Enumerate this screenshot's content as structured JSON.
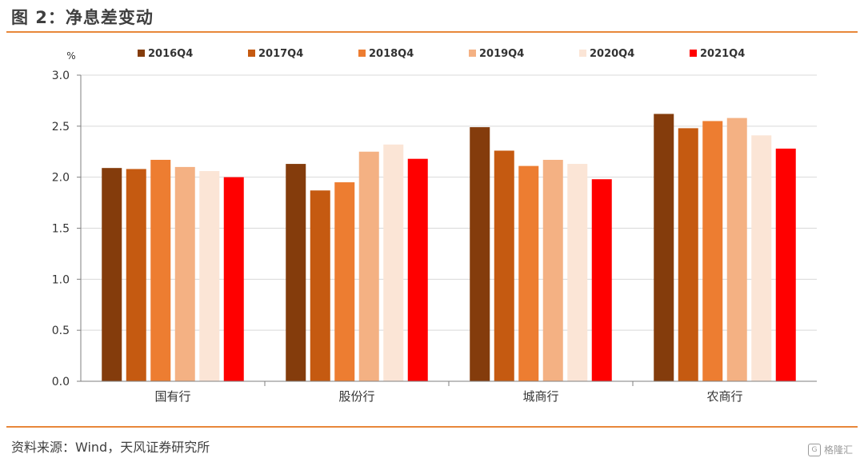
{
  "figure": {
    "title": "图 2：净息差变动",
    "source": "资料来源：Wind，天风证券研究所",
    "watermark": "格隆汇",
    "watermark_icon": "G"
  },
  "chart_data": {
    "type": "bar",
    "title": "",
    "xlabel": "",
    "ylabel": "%",
    "ylim": [
      0,
      3.0
    ],
    "yticks": [
      "0.0",
      "0.5",
      "1.0",
      "1.5",
      "2.0",
      "2.5",
      "3.0"
    ],
    "grid": true,
    "legend_position": "top",
    "categories": [
      "国有行",
      "股份行",
      "城商行",
      "农商行"
    ],
    "series": [
      {
        "name": "2016Q4",
        "color": "#843c0c",
        "values": [
          2.09,
          2.13,
          2.49,
          2.62
        ]
      },
      {
        "name": "2017Q4",
        "color": "#c55a11",
        "values": [
          2.08,
          1.87,
          2.26,
          2.48
        ]
      },
      {
        "name": "2018Q4",
        "color": "#ed7d31",
        "values": [
          2.17,
          1.95,
          2.11,
          2.55
        ]
      },
      {
        "name": "2019Q4",
        "color": "#f4b183",
        "values": [
          2.1,
          2.25,
          2.17,
          2.58
        ]
      },
      {
        "name": "2020Q4",
        "color": "#fbe5d6",
        "values": [
          2.06,
          2.32,
          2.13,
          2.41
        ]
      },
      {
        "name": "2021Q4",
        "color": "#ff0000",
        "values": [
          2.0,
          2.18,
          1.98,
          2.28
        ]
      }
    ]
  }
}
